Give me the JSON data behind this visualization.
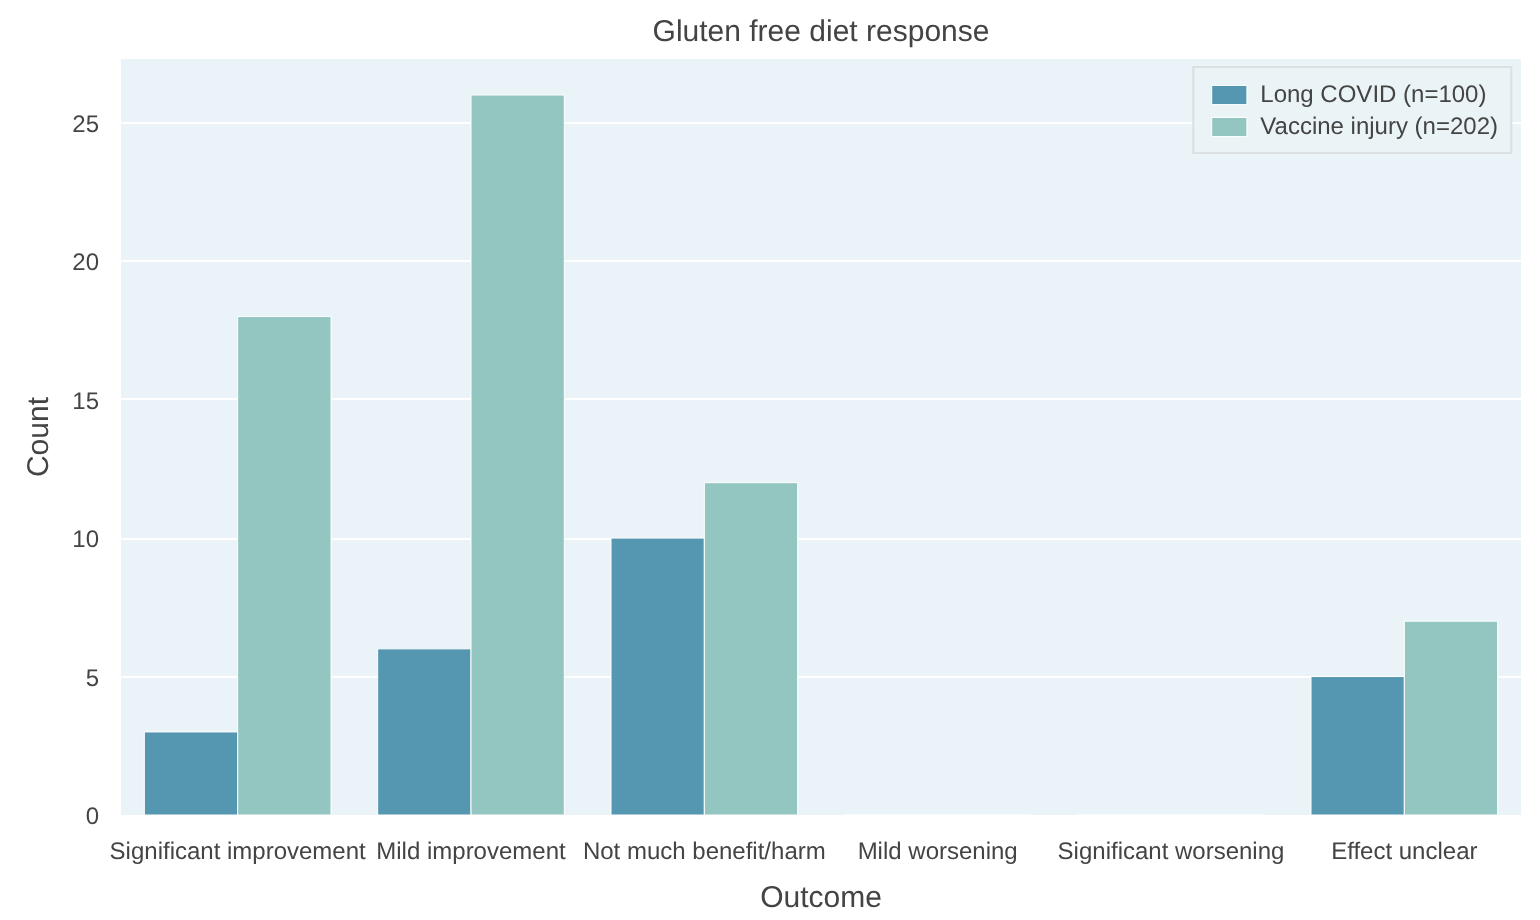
{
  "chart_data": {
    "type": "bar",
    "title": "Gluten free diet response",
    "xlabel": "Outcome",
    "ylabel": "Count",
    "categories": [
      "Significant improvement",
      "Mild improvement",
      "Not much benefit/harm",
      "Mild worsening",
      "Significant worsening",
      "Effect unclear"
    ],
    "series": [
      {
        "name": "Long COVID (n=100)",
        "color": "#5597b1",
        "values": [
          3,
          6,
          10,
          0,
          0,
          5
        ]
      },
      {
        "name": "Vaccine injury (n=202)",
        "color": "#93c6c0",
        "values": [
          18,
          26,
          12,
          0,
          0,
          7
        ]
      }
    ],
    "ylim": [
      0,
      27.3
    ],
    "yticks": [
      0,
      5,
      10,
      15,
      20,
      25
    ],
    "grid": "y",
    "legend": "top right"
  }
}
